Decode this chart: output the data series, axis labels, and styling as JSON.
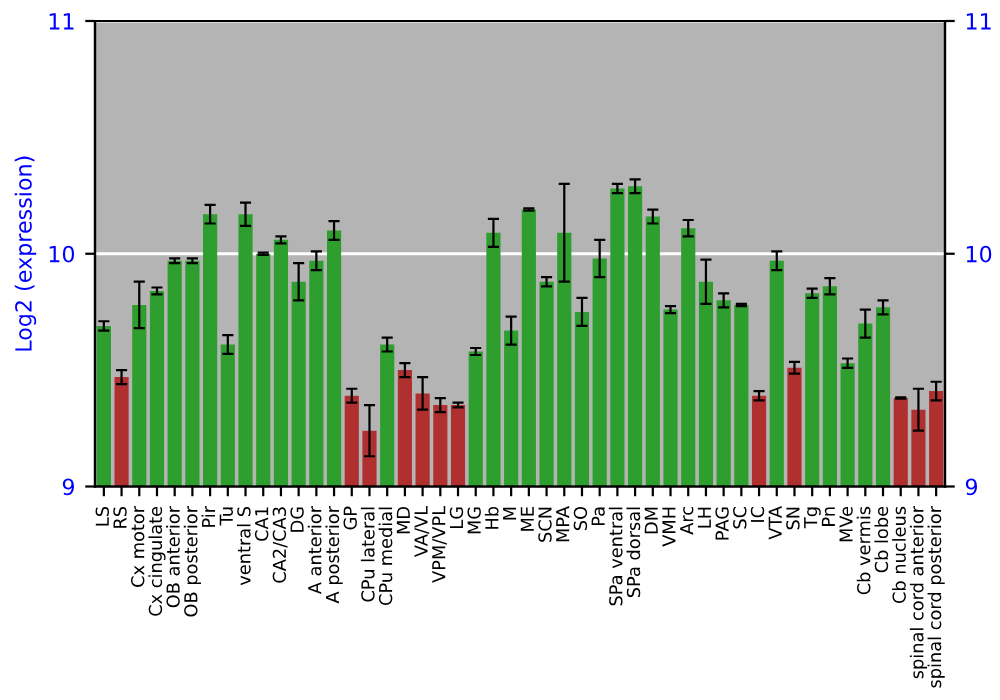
{
  "chart_data": {
    "type": "bar",
    "ylabel": "Log2 (expression)",
    "categories": [
      "LS",
      "RS",
      "Cx motor",
      "Cx cingulate",
      "OB anterior",
      "OB posterior",
      "Pir",
      "Tu",
      "ventral S",
      "CA1",
      "CA2/CA3",
      "DG",
      "A anterior",
      "A posterior",
      "GP",
      "CPu lateral",
      "CPu medial",
      "MD",
      "VA/VL",
      "VPM/VPL",
      "LG",
      "MG",
      "Hb",
      "M",
      "ME",
      "SCN",
      "MPA",
      "SO",
      "Pa",
      "SPa ventral",
      "SPa dorsal",
      "DM",
      "VMH",
      "Arc",
      "LH",
      "PAG",
      "SC",
      "IC",
      "VTA",
      "SN",
      "Tg",
      "Pn",
      "MVe",
      "Cb vermis",
      "Cb lobe",
      "Cb nucleus",
      "spinal cord anterior",
      "spinal cord posterior"
    ],
    "values": [
      9.69,
      9.47,
      9.78,
      9.84,
      9.97,
      9.97,
      10.17,
      9.61,
      10.17,
      10.0,
      10.06,
      9.88,
      9.97,
      10.1,
      9.39,
      9.24,
      9.61,
      9.5,
      9.4,
      9.35,
      9.35,
      9.58,
      10.09,
      9.67,
      10.19,
      9.88,
      10.09,
      9.75,
      9.98,
      10.28,
      10.29,
      10.16,
      9.76,
      10.11,
      9.88,
      9.8,
      9.78,
      9.39,
      9.97,
      9.51,
      9.83,
      9.86,
      9.53,
      9.7,
      9.77,
      9.38,
      9.33,
      9.41
    ],
    "errors": [
      0.02,
      0.03,
      0.1,
      0.015,
      0.01,
      0.01,
      0.04,
      0.04,
      0.05,
      0.005,
      0.015,
      0.08,
      0.04,
      0.04,
      0.03,
      0.11,
      0.03,
      0.03,
      0.07,
      0.03,
      0.01,
      0.015,
      0.06,
      0.06,
      0.005,
      0.02,
      0.21,
      0.06,
      0.08,
      0.02,
      0.03,
      0.03,
      0.015,
      0.035,
      0.095,
      0.03,
      0.005,
      0.02,
      0.04,
      0.025,
      0.02,
      0.035,
      0.02,
      0.06,
      0.03,
      0.003,
      0.09,
      0.04
    ],
    "colors": [
      "#2e9e2e",
      "#b03030",
      "#2e9e2e",
      "#2e9e2e",
      "#2e9e2e",
      "#2e9e2e",
      "#2e9e2e",
      "#2e9e2e",
      "#2e9e2e",
      "#2e9e2e",
      "#2e9e2e",
      "#2e9e2e",
      "#2e9e2e",
      "#2e9e2e",
      "#b03030",
      "#b03030",
      "#2e9e2e",
      "#b03030",
      "#b03030",
      "#b03030",
      "#b03030",
      "#2e9e2e",
      "#2e9e2e",
      "#2e9e2e",
      "#2e9e2e",
      "#2e9e2e",
      "#2e9e2e",
      "#2e9e2e",
      "#2e9e2e",
      "#2e9e2e",
      "#2e9e2e",
      "#2e9e2e",
      "#2e9e2e",
      "#2e9e2e",
      "#2e9e2e",
      "#2e9e2e",
      "#2e9e2e",
      "#b03030",
      "#2e9e2e",
      "#b03030",
      "#2e9e2e",
      "#2e9e2e",
      "#2e9e2e",
      "#2e9e2e",
      "#2e9e2e",
      "#b03030",
      "#b03030",
      "#b03030"
    ],
    "ylim": [
      9,
      11
    ],
    "yticks": [
      9,
      10,
      11
    ],
    "y2lim": [
      9,
      11
    ],
    "y2ticks": [
      9,
      10,
      11
    ],
    "grid": "y",
    "legend": false
  }
}
